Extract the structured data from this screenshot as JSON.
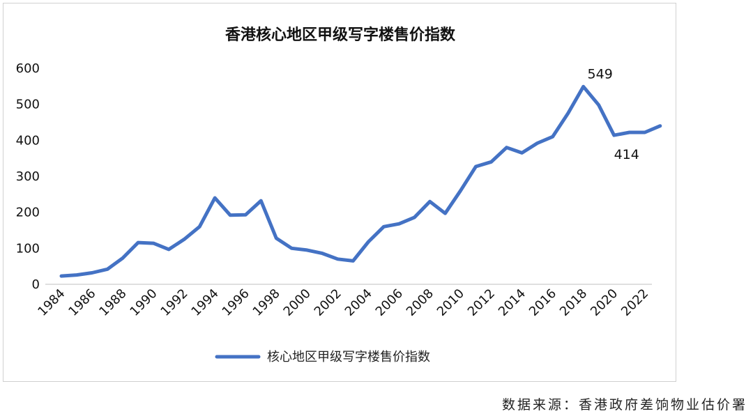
{
  "chart_data": {
    "type": "line",
    "title": "香港核心地区甲级写字楼售价指数",
    "xlabel": "",
    "ylabel": "",
    "ylim": [
      0,
      600
    ],
    "yticks": [
      0,
      100,
      200,
      300,
      400,
      500,
      600
    ],
    "xticks": [
      "1984",
      "1986",
      "1988",
      "1990",
      "1992",
      "1994",
      "1996",
      "1998",
      "2000",
      "2002",
      "2004",
      "2006",
      "2008",
      "2010",
      "2012",
      "2014",
      "2016",
      "2018",
      "2020",
      "2022"
    ],
    "grid": false,
    "legend": "bottom",
    "color": "#4472C4",
    "series": [
      {
        "name": "核心地区甲级写字楼售价指数",
        "x": [
          1984,
          1985,
          1986,
          1987,
          1988,
          1989,
          1990,
          1991,
          1992,
          1993,
          1994,
          1995,
          1996,
          1997,
          1998,
          1999,
          2000,
          2001,
          2002,
          2003,
          2004,
          2005,
          2006,
          2007,
          2008,
          2009,
          2010,
          2011,
          2012,
          2013,
          2014,
          2015,
          2016,
          2017,
          2018,
          2019,
          2020,
          2021,
          2022,
          2023
        ],
        "values": [
          23,
          26,
          32,
          42,
          73,
          116,
          114,
          97,
          125,
          160,
          240,
          192,
          193,
          232,
          128,
          100,
          95,
          86,
          70,
          65,
          118,
          160,
          168,
          186,
          230,
          197,
          260,
          327,
          340,
          380,
          365,
          392,
          410,
          475,
          549,
          498,
          414,
          422,
          422,
          440
        ]
      }
    ],
    "annotations": [
      {
        "x": 2018,
        "value": 549,
        "text": "549"
      },
      {
        "x": 2020,
        "value": 414,
        "text": "414"
      }
    ]
  },
  "source_note": "数据来源：香港政府差饷物业估价署"
}
